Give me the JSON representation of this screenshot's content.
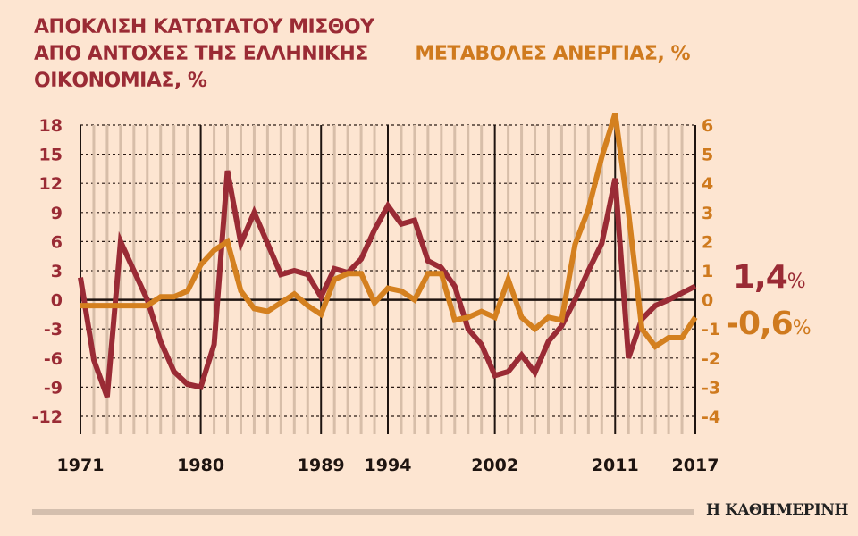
{
  "chart_data": {
    "type": "line",
    "title_left": "ΑΠΟΚΛΙΣΗ ΚΑΤΩΤΑΤΟΥ ΜΙΣΘΟΥ ΑΠΟ ΑΝΤΟΧΕΣ ΤΗΣ ΕΛΛΗΝΙΚΗΣ ΟΙΚΟΝΟΜΙΑΣ, %",
    "title_right": "ΜΕΤΑΒΟΛΕΣ ΑΝΕΡΓΙΑΣ, %",
    "x": [
      1971,
      1972,
      1973,
      1974,
      1975,
      1976,
      1977,
      1978,
      1979,
      1980,
      1981,
      1982,
      1983,
      1984,
      1985,
      1986,
      1987,
      1988,
      1989,
      1990,
      1991,
      1992,
      1993,
      1994,
      1995,
      1996,
      1997,
      1998,
      1999,
      2000,
      2001,
      2002,
      2003,
      2004,
      2005,
      2006,
      2007,
      2008,
      2009,
      2010,
      2011,
      2012,
      2013,
      2014,
      2015,
      2016,
      2017
    ],
    "xlim": [
      1971,
      2017
    ],
    "x_tick_labels": [
      "1971",
      "1980",
      "1989",
      "1994",
      "2002",
      "2011",
      "2017"
    ],
    "left_axis": {
      "ylim": [
        -12,
        18
      ],
      "ticks": [
        "18",
        "15",
        "12",
        "9",
        "6",
        "3",
        "0",
        "-3",
        "-6",
        "-9",
        "-12"
      ]
    },
    "right_axis": {
      "ylim": [
        -4,
        6
      ],
      "ticks": [
        "6",
        "5",
        "4",
        "3",
        "2",
        "1",
        "0",
        "-1",
        "-2",
        "-3",
        "-4"
      ]
    },
    "grid": true,
    "series": [
      {
        "axis": "left",
        "color": "#9a2b35",
        "values": [
          2.3,
          -6.2,
          -10,
          6,
          3,
          0,
          -4.3,
          -7.4,
          -8.7,
          -9,
          -4.6,
          13.3,
          5.8,
          9,
          5.8,
          2.6,
          3,
          2.6,
          0.3,
          3.2,
          2.8,
          4.2,
          7.2,
          9.7,
          7.8,
          8.2,
          4,
          3.3,
          1.4,
          -3,
          -4.6,
          -7.8,
          -7.4,
          -5.7,
          -7.5,
          -4.3,
          -2.7,
          0,
          3,
          5.8,
          12.5,
          -6,
          -2,
          -0.6,
          0,
          0.7,
          1.4
        ]
      },
      {
        "axis": "right",
        "color": "#d4801f",
        "values": [
          -0.2,
          -0.2,
          -0.2,
          -0.2,
          -0.2,
          -0.2,
          0.1,
          0.1,
          0.3,
          1.2,
          1.7,
          2.0,
          0.3,
          -0.3,
          -0.4,
          -0.1,
          0.2,
          -0.2,
          -0.5,
          0.7,
          0.9,
          0.9,
          -0.1,
          0.4,
          0.3,
          0,
          0.9,
          0.9,
          -0.7,
          -0.6,
          -0.4,
          -0.6,
          0.7,
          -0.6,
          -1.0,
          -0.6,
          -0.7,
          1.9,
          3.1,
          4.9,
          6.4,
          3.0,
          -1.0,
          -1.6,
          -1.3,
          -1.3,
          -0.6
        ]
      }
    ],
    "end_labels": {
      "red": "1,4",
      "orange": "-0,6",
      "unit": "%"
    }
  },
  "footer": {
    "brand": "Η ΚΑΘΗΜΕΡΙΝΗ"
  }
}
